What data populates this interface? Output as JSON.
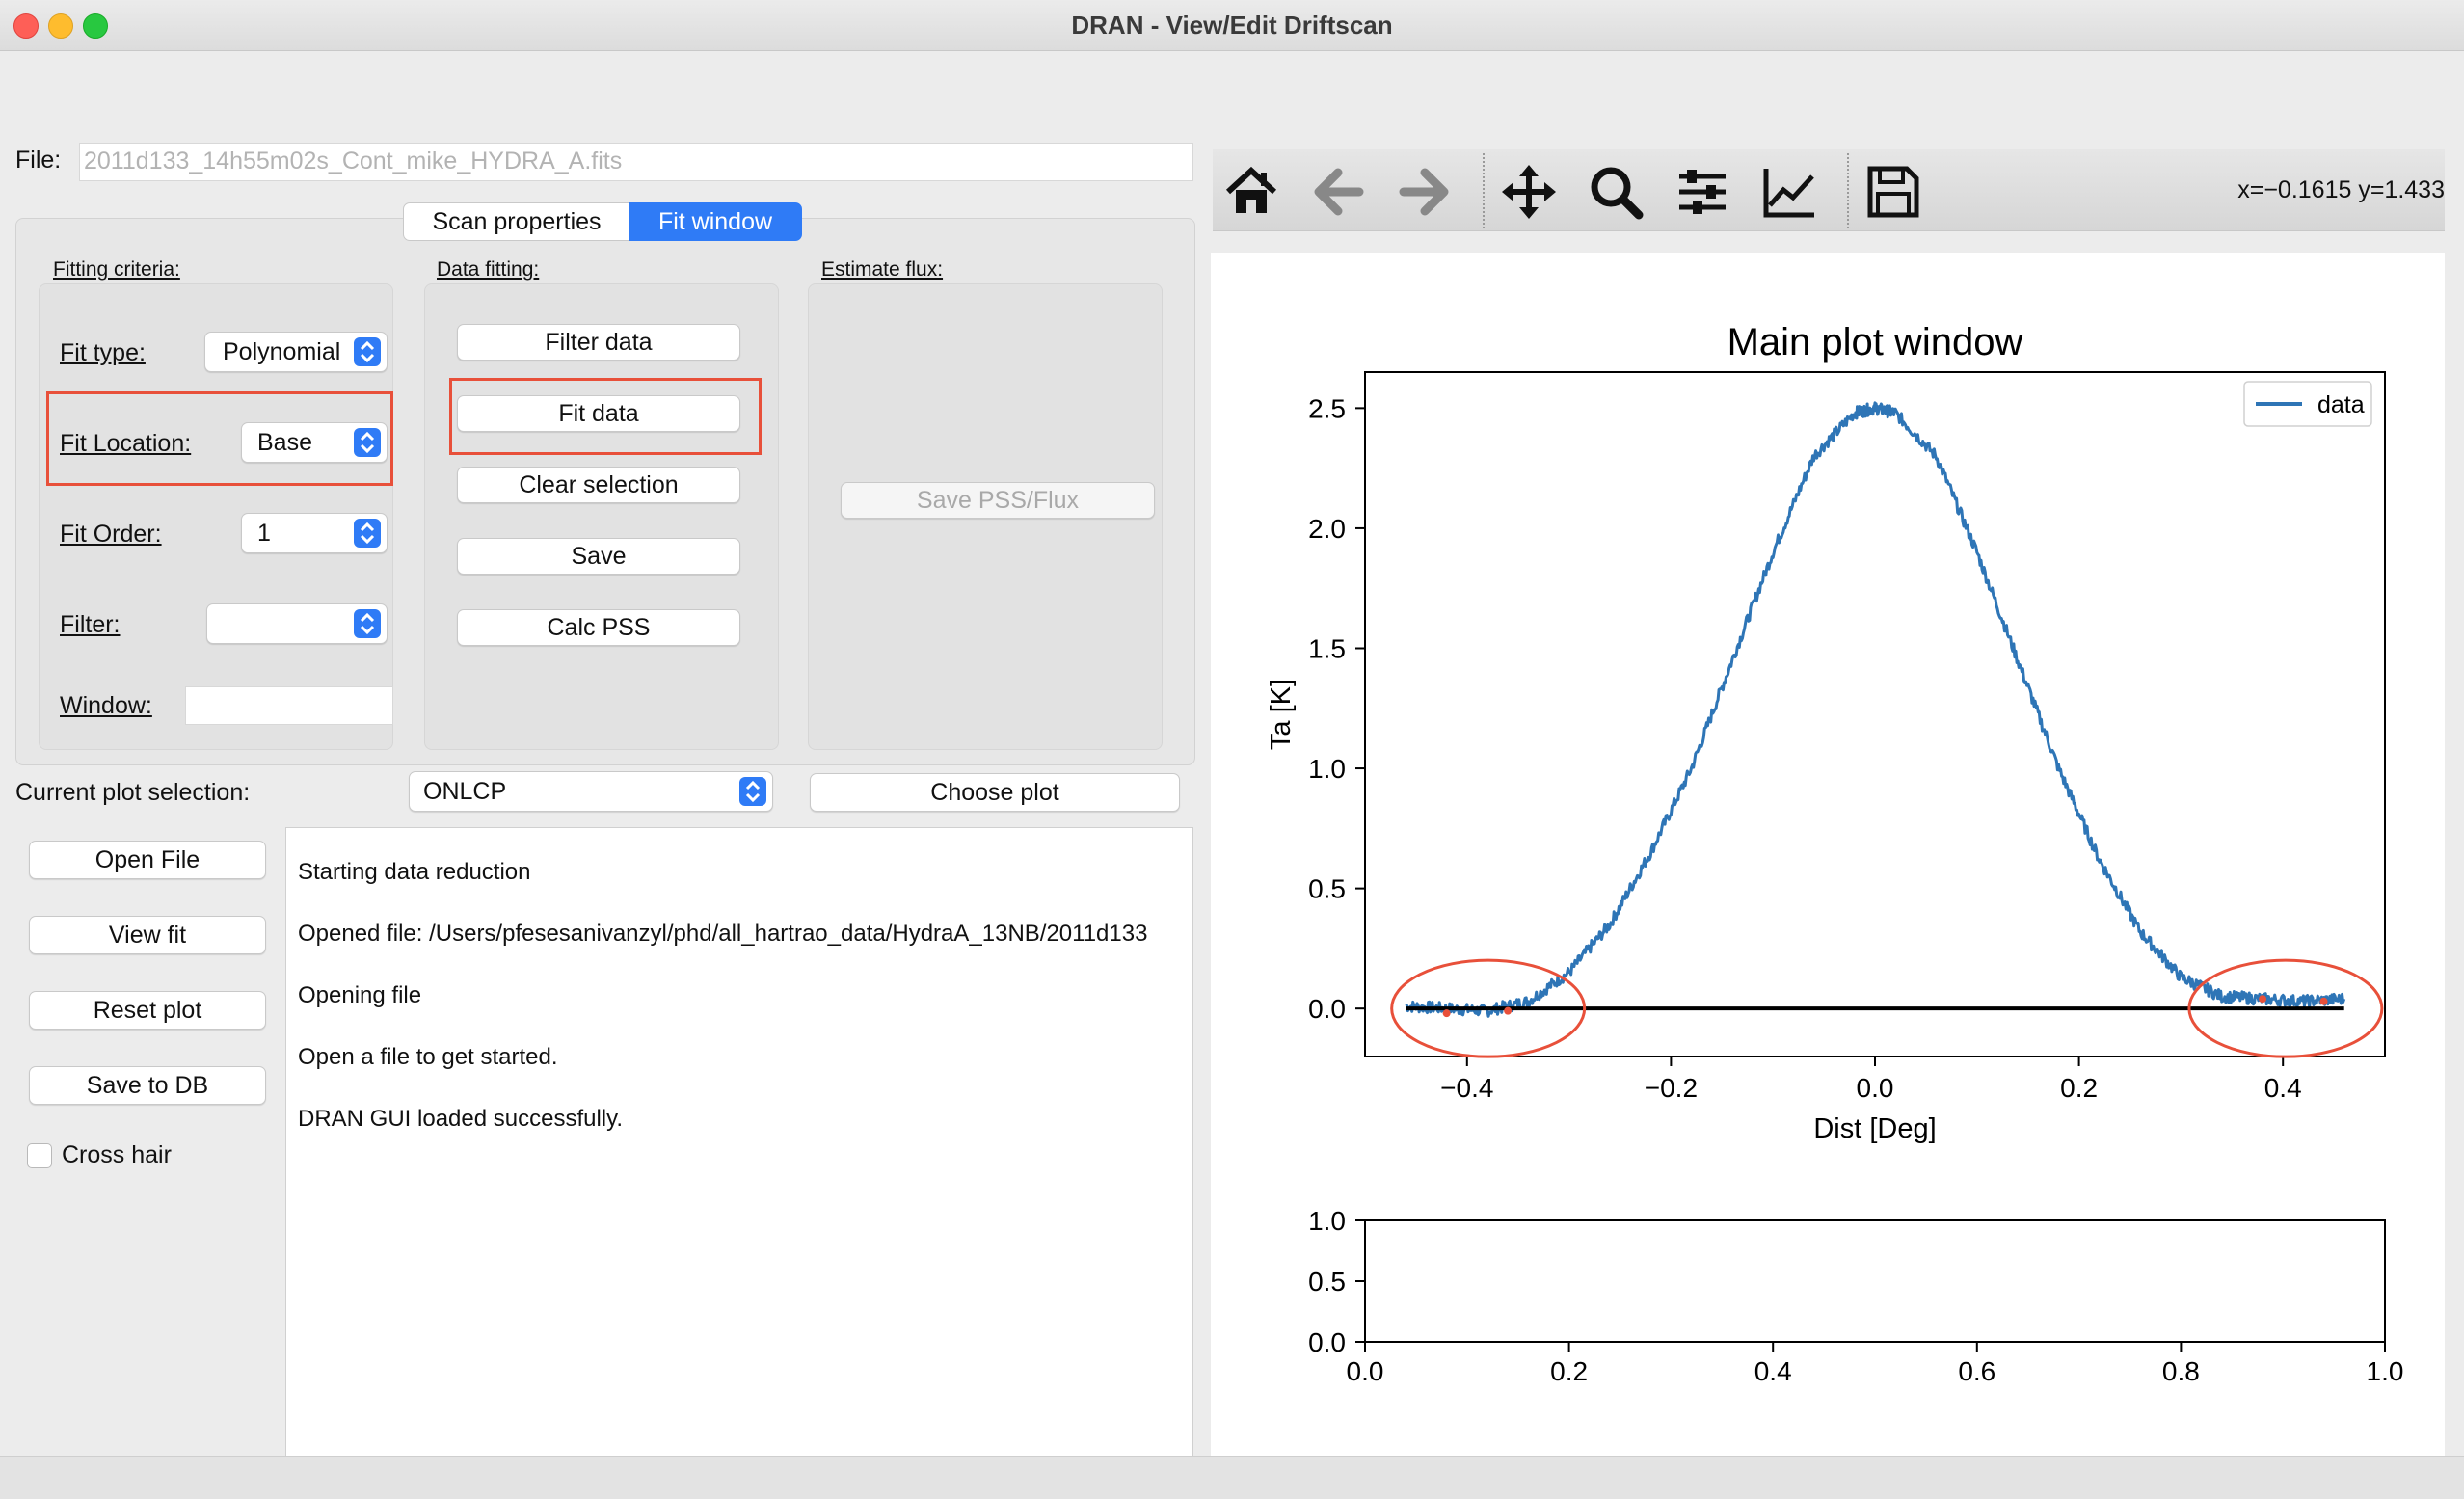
{
  "window": {
    "title": "DRAN - View/Edit Driftscan"
  },
  "file": {
    "label": "File:",
    "value": "2011d133_14h55m02s_Cont_mike_HYDRA_A.fits"
  },
  "tabs": [
    {
      "label": "Scan properties",
      "active": false
    },
    {
      "label": "Fit window",
      "active": true
    }
  ],
  "fitting_criteria": {
    "title": "Fitting criteria:",
    "fit_type_label": "Fit type:",
    "fit_type_value": "Polynomial",
    "fit_location_label": "Fit Location:",
    "fit_location_value": "Base",
    "fit_order_label": "Fit Order:",
    "fit_order_value": "1",
    "filter_label": "Filter:",
    "filter_value": "",
    "window_label": "Window:",
    "window_value": ""
  },
  "data_fitting": {
    "title": "Data fitting:",
    "filter_data": "Filter data",
    "fit_data": "Fit data",
    "clear_selection": "Clear selection",
    "save": "Save",
    "calc_pss": "Calc PSS"
  },
  "estimate_flux": {
    "title": "Estimate flux:",
    "save_pss_flux": "Save PSS/Flux"
  },
  "plot_selection": {
    "label": "Current plot selection:",
    "value": "ONLCP",
    "choose_plot": "Choose plot"
  },
  "side_buttons": {
    "open_file": "Open File",
    "view_fit": "View fit",
    "reset_plot": "Reset plot",
    "save_to_db": "Save to DB",
    "cross_hair": "Cross hair"
  },
  "log": [
    "Starting data reduction",
    "Opened file: /Users/pfesesanivanzyl/phd/all_hartrao_data/HydraA_13NB/2011d133",
    "Opening file",
    "Open a file to get started.",
    "DRAN GUI loaded successfully."
  ],
  "toolbar": {
    "icons": [
      "home-icon",
      "back-arrow-icon",
      "forward-arrow-icon",
      "pan-move-icon",
      "zoom-icon",
      "configure-subplots-icon",
      "edit-axis-icon",
      "save-figure-icon"
    ],
    "coords": "x=−0.1615 y=1.433"
  },
  "colors": {
    "data_line": "#2e75b6",
    "fit_line": "#000000",
    "highlight": "#e8503a",
    "tab_active": "#2f7bf6"
  },
  "chart_data": [
    {
      "type": "line",
      "title": "Main plot window",
      "xlabel": "Dist [Deg]",
      "ylabel": "Ta [K]",
      "xlim": [
        -0.5,
        0.5
      ],
      "ylim": [
        -0.2,
        2.65
      ],
      "xticks": [
        "−0.4",
        "−0.2",
        "0.0",
        "0.2",
        "0.4"
      ],
      "yticks": [
        "0.0",
        "0.5",
        "1.0",
        "1.5",
        "2.0",
        "2.5"
      ],
      "legend": {
        "position": "top-right",
        "entries": [
          "data"
        ]
      },
      "series": [
        {
          "name": "data",
          "x": [
            -0.46,
            -0.42,
            -0.38,
            -0.34,
            -0.3,
            -0.26,
            -0.22,
            -0.18,
            -0.14,
            -0.1,
            -0.06,
            -0.02,
            0.0,
            0.02,
            0.06,
            0.1,
            0.14,
            0.18,
            0.22,
            0.26,
            0.3,
            0.34,
            0.38,
            0.42,
            0.46
          ],
          "y": [
            0.01,
            0.0,
            -0.01,
            0.03,
            0.15,
            0.35,
            0.65,
            1.0,
            1.45,
            1.9,
            2.3,
            2.48,
            2.5,
            2.48,
            2.3,
            1.9,
            1.45,
            1.0,
            0.62,
            0.32,
            0.13,
            0.05,
            0.04,
            0.03,
            0.04
          ]
        },
        {
          "x": [
            -0.46,
            0.46
          ],
          "y": [
            0.0,
            0.0
          ]
        }
      ],
      "selected_points": {
        "x": [
          -0.42,
          -0.36,
          0.38,
          0.44
        ],
        "y": [
          -0.02,
          -0.01,
          0.04,
          0.03
        ]
      }
    },
    {
      "type": "line",
      "title": "",
      "xlim": [
        0.0,
        1.0
      ],
      "ylim": [
        0.0,
        1.0
      ],
      "xticks": [
        "0.0",
        "0.2",
        "0.4",
        "0.6",
        "0.8",
        "1.0"
      ],
      "yticks": [
        "0.0",
        "0.5",
        "1.0"
      ],
      "series": []
    }
  ]
}
